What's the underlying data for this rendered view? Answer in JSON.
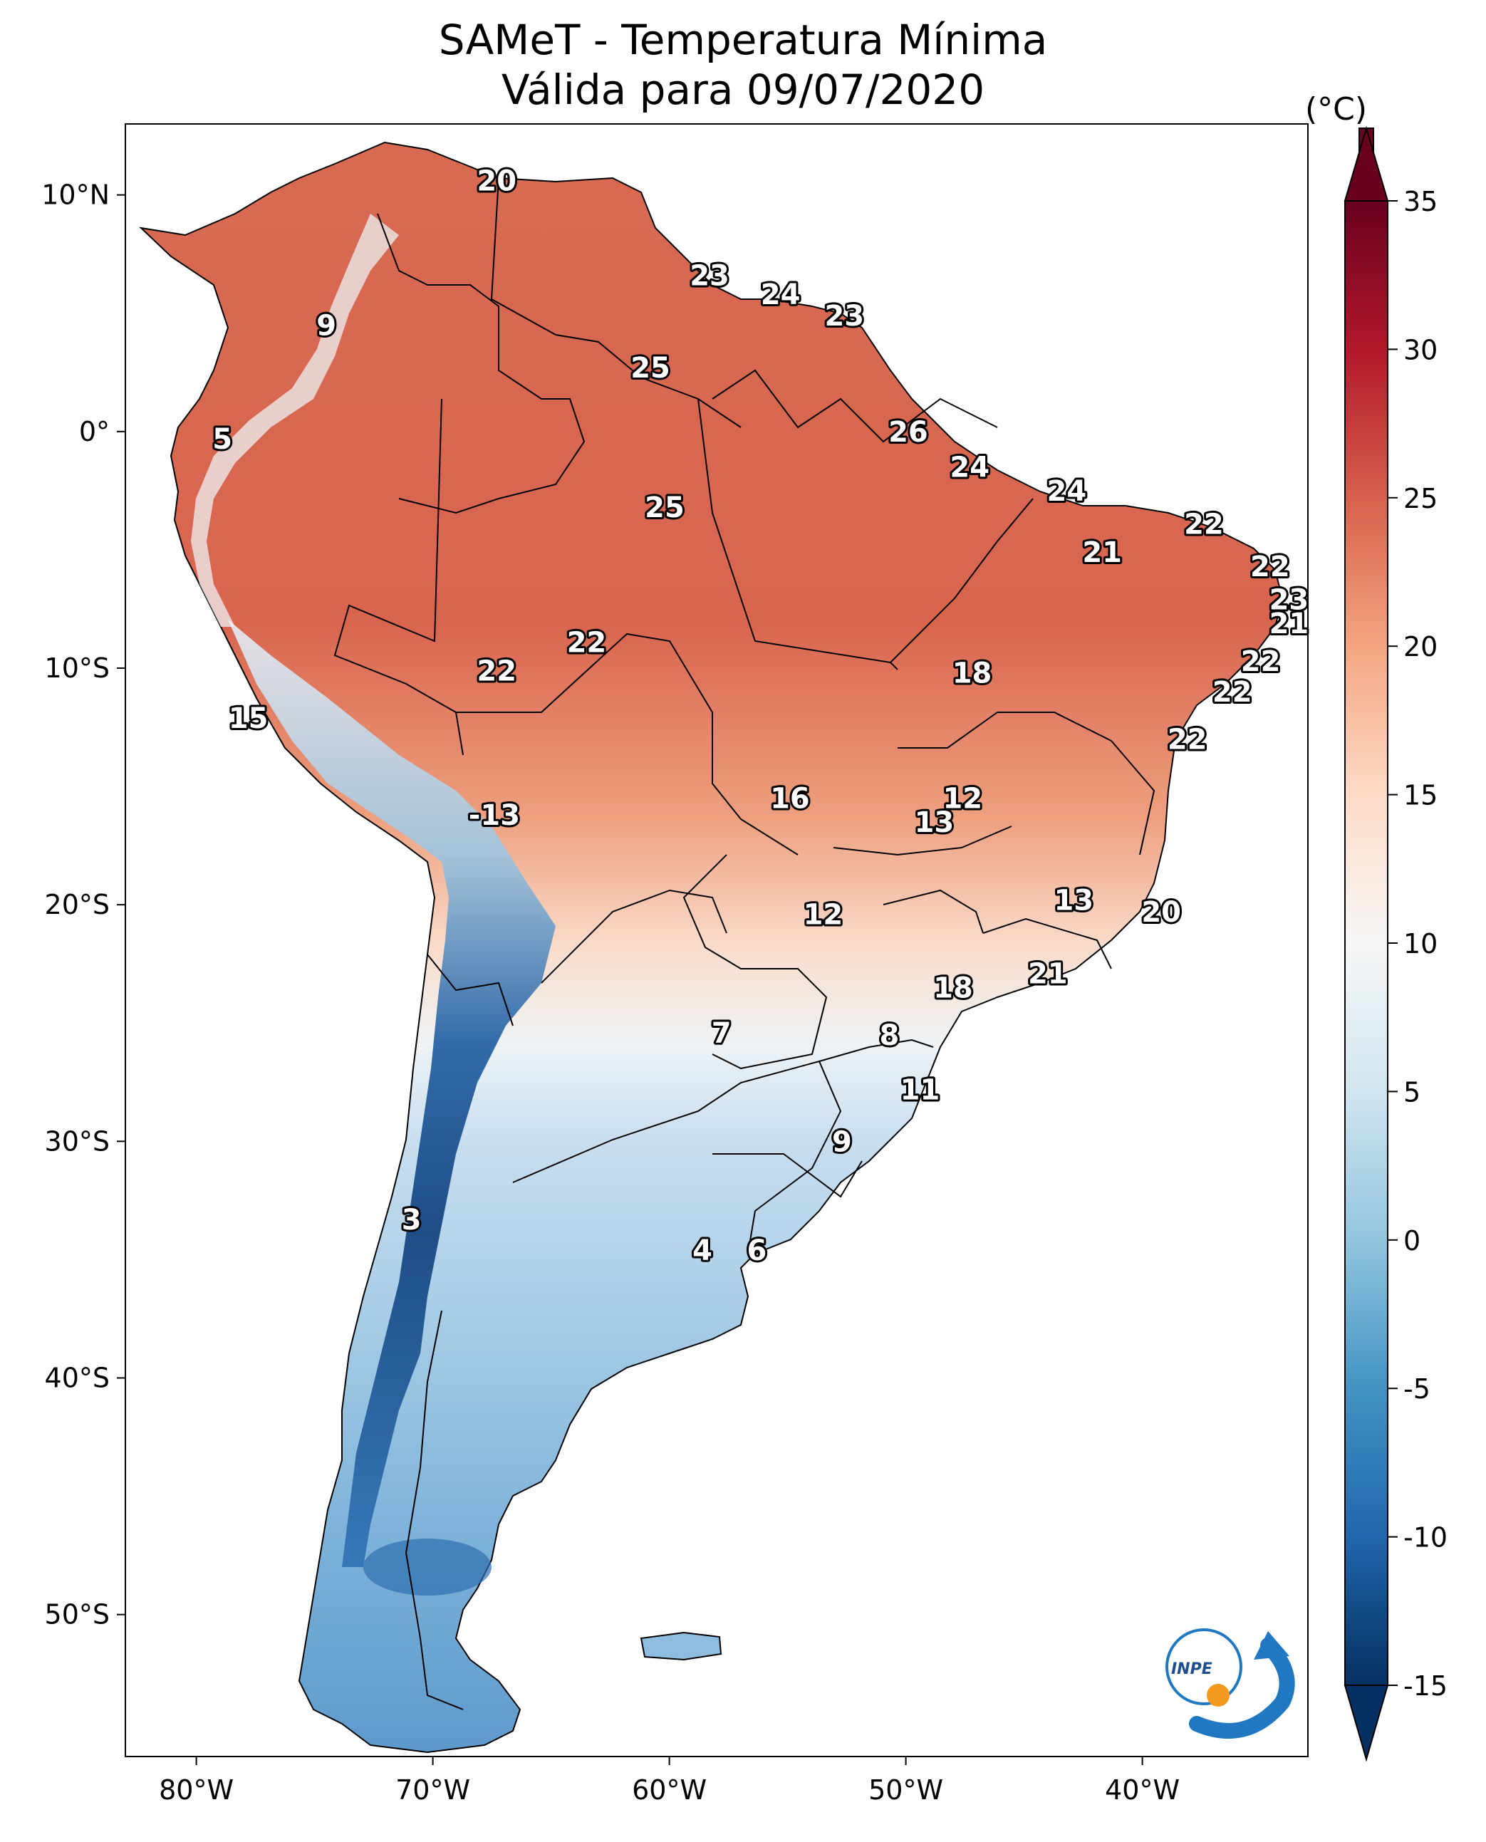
{
  "title": {
    "line1": "SAMeT - Temperatura Mínima",
    "line2": "Válida para 09/07/2020"
  },
  "map": {
    "lon_ticks": [
      "80°W",
      "70°W",
      "60°W",
      "50°W",
      "40°W"
    ],
    "lat_ticks": [
      "10°N",
      "0°",
      "10°S",
      "20°S",
      "30°S",
      "40°S",
      "50°S"
    ],
    "lon_values": [
      -80,
      -70,
      -60,
      -50,
      -40
    ],
    "lat_values": [
      10,
      0,
      -10,
      -20,
      -30,
      -40,
      -50
    ],
    "extent": {
      "lon": [
        -83,
        -33
      ],
      "lat": [
        -56,
        13
      ]
    },
    "labels": [
      {
        "text": "20",
        "lon": -67.3,
        "lat": 10.6
      },
      {
        "text": "9",
        "lon": -74.5,
        "lat": 4.5
      },
      {
        "text": "23",
        "lon": -58.3,
        "lat": 6.6
      },
      {
        "text": "24",
        "lon": -55.3,
        "lat": 5.8
      },
      {
        "text": "23",
        "lon": -52.6,
        "lat": 4.9
      },
      {
        "text": "25",
        "lon": -60.8,
        "lat": 2.7
      },
      {
        "text": "5",
        "lon": -78.9,
        "lat": -0.3
      },
      {
        "text": "26",
        "lon": -49.9,
        "lat": 0.0
      },
      {
        "text": "24",
        "lon": -47.3,
        "lat": -1.5
      },
      {
        "text": "24",
        "lon": -43.2,
        "lat": -2.5
      },
      {
        "text": "25",
        "lon": -60.2,
        "lat": -3.2
      },
      {
        "text": "22",
        "lon": -37.4,
        "lat": -3.9
      },
      {
        "text": "21",
        "lon": -41.7,
        "lat": -5.1
      },
      {
        "text": "22",
        "lon": -34.6,
        "lat": -5.7
      },
      {
        "text": "23",
        "lon": -33.8,
        "lat": -7.1
      },
      {
        "text": "21",
        "lon": -33.8,
        "lat": -8.1
      },
      {
        "text": "22",
        "lon": -63.5,
        "lat": -8.9
      },
      {
        "text": "22",
        "lon": -67.3,
        "lat": -10.1
      },
      {
        "text": "18",
        "lon": -47.2,
        "lat": -10.2
      },
      {
        "text": "22",
        "lon": -35.0,
        "lat": -9.7
      },
      {
        "text": "22",
        "lon": -36.2,
        "lat": -11.0
      },
      {
        "text": "15",
        "lon": -77.8,
        "lat": -12.1
      },
      {
        "text": "22",
        "lon": -38.1,
        "lat": -13.0
      },
      {
        "text": "16",
        "lon": -54.9,
        "lat": -15.5
      },
      {
        "text": "12",
        "lon": -47.6,
        "lat": -15.5
      },
      {
        "text": "13",
        "lon": -48.8,
        "lat": -16.5
      },
      {
        "text": "-13",
        "lon": -67.4,
        "lat": -16.2
      },
      {
        "text": "13",
        "lon": -42.9,
        "lat": -19.8
      },
      {
        "text": "20",
        "lon": -39.2,
        "lat": -20.3
      },
      {
        "text": "12",
        "lon": -53.5,
        "lat": -20.4
      },
      {
        "text": "18",
        "lon": -48.0,
        "lat": -23.5
      },
      {
        "text": "21",
        "lon": -44.0,
        "lat": -22.9
      },
      {
        "text": "7",
        "lon": -57.8,
        "lat": -25.4
      },
      {
        "text": "8",
        "lon": -50.7,
        "lat": -25.5
      },
      {
        "text": "11",
        "lon": -49.4,
        "lat": -27.8
      },
      {
        "text": "9",
        "lon": -52.7,
        "lat": -30.0
      },
      {
        "text": "3",
        "lon": -70.9,
        "lat": -33.3
      },
      {
        "text": "4",
        "lon": -58.6,
        "lat": -34.6
      },
      {
        "text": "6",
        "lon": -56.3,
        "lat": -34.6
      }
    ]
  },
  "colorbar": {
    "unit": "(°C)",
    "ticks": [
      "35",
      "30",
      "25",
      "20",
      "15",
      "10",
      "5",
      "0",
      "-5",
      "-10",
      "-15"
    ],
    "tick_values": [
      35,
      30,
      25,
      20,
      15,
      10,
      5,
      0,
      -5,
      -10,
      -15
    ],
    "range": [
      -15,
      35
    ],
    "colors": [
      "#053061",
      "#2166ac",
      "#4393c3",
      "#92c5de",
      "#d1e5f0",
      "#f7f7f7",
      "#fddbc7",
      "#f4a582",
      "#d6604d",
      "#b2182b",
      "#67001f"
    ]
  },
  "logo": {
    "text": "INPE",
    "arrow_color": "#1f78c1",
    "dot_color": "#f39a1e"
  }
}
